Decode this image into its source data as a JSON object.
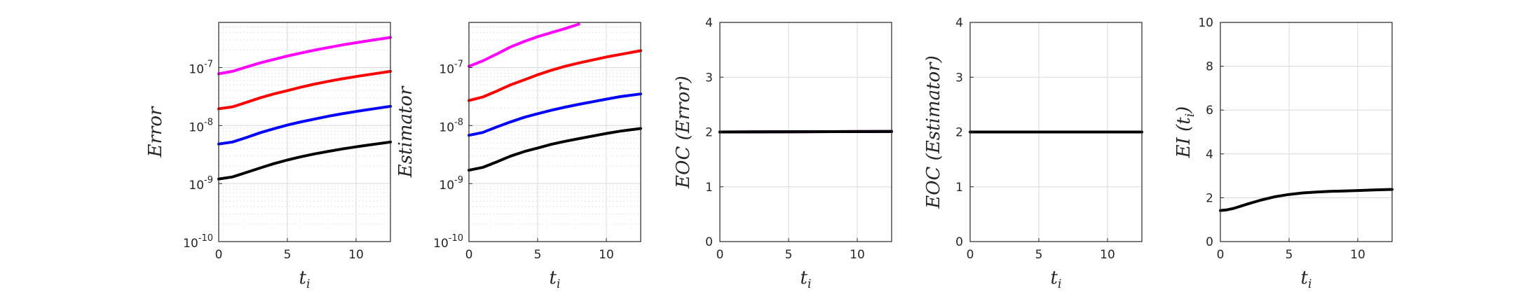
{
  "chart_data": [
    {
      "type": "line",
      "yscale": "log",
      "xlabel": "t_i",
      "ylabel": "Error",
      "xlim": [
        0,
        12.5
      ],
      "ylim": [
        1e-10,
        6e-07
      ],
      "xticks": [
        0,
        5,
        10
      ],
      "xtick_labels": [
        "0",
        "5",
        "10"
      ],
      "yticks": [
        1e-10,
        1e-09,
        1e-08,
        1e-07
      ],
      "ytick_labels": [
        [
          "10",
          "-10"
        ],
        [
          "10",
          "-9"
        ],
        [
          "10",
          "-8"
        ],
        [
          "10",
          "-7"
        ]
      ],
      "grid": true,
      "minor_grid": true,
      "x": [
        0,
        1,
        2,
        3,
        4,
        5,
        6,
        7,
        8,
        9,
        10,
        11,
        12.5
      ],
      "series": [
        {
          "color": "#ff00ff",
          "values": [
            7.8e-08,
            8.6e-08,
            1.02e-07,
            1.2e-07,
            1.38e-07,
            1.58e-07,
            1.78e-07,
            2e-07,
            2.22e-07,
            2.45e-07,
            2.68e-07,
            2.92e-07,
            3.3e-07
          ]
        },
        {
          "color": "#ff0000",
          "values": [
            1.95e-08,
            2.1e-08,
            2.5e-08,
            3e-08,
            3.5e-08,
            4e-08,
            4.6e-08,
            5.2e-08,
            5.8e-08,
            6.4e-08,
            7e-08,
            7.6e-08,
            8.6e-08
          ]
        },
        {
          "color": "#0000ff",
          "values": [
            4.8e-09,
            5.2e-09,
            6.2e-09,
            7.5e-09,
            8.8e-09,
            1.02e-08,
            1.16e-08,
            1.3e-08,
            1.45e-08,
            1.6e-08,
            1.75e-08,
            1.9e-08,
            2.15e-08
          ]
        },
        {
          "color": "#000000",
          "values": [
            1.2e-09,
            1.3e-09,
            1.55e-09,
            1.85e-09,
            2.2e-09,
            2.55e-09,
            2.9e-09,
            3.25e-09,
            3.6e-09,
            3.95e-09,
            4.3e-09,
            4.65e-09,
            5.2e-09
          ]
        }
      ]
    },
    {
      "type": "line",
      "yscale": "log",
      "xlabel": "t_i",
      "ylabel": "Estimator",
      "xlim": [
        0,
        12.5
      ],
      "ylim": [
        1e-10,
        6e-07
      ],
      "xticks": [
        0,
        5,
        10
      ],
      "xtick_labels": [
        "0",
        "5",
        "10"
      ],
      "yticks": [
        1e-10,
        1e-09,
        1e-08,
        1e-07
      ],
      "ytick_labels": [
        [
          "10",
          "-10"
        ],
        [
          "10",
          "-9"
        ],
        [
          "10",
          "-8"
        ],
        [
          "10",
          "-7"
        ]
      ],
      "grid": true,
      "minor_grid": true,
      "x": [
        0,
        1,
        2,
        3,
        4,
        5,
        6,
        7,
        8,
        9,
        10,
        11,
        12.5
      ],
      "series": [
        {
          "color": "#ff00ff",
          "values": [
            1.05e-07,
            1.3e-07,
            1.7e-07,
            2.25e-07,
            2.8e-07,
            3.4e-07,
            4e-07,
            4.7e-07,
            5.6e-07,
            null,
            null,
            null,
            null
          ]
        },
        {
          "color": "#ff0000",
          "values": [
            2.7e-08,
            3.1e-08,
            3.9e-08,
            5e-08,
            6.1e-08,
            7.5e-08,
            9e-08,
            1.05e-07,
            1.2e-07,
            1.35e-07,
            1.52e-07,
            1.68e-07,
            1.95e-07
          ]
        },
        {
          "color": "#0000ff",
          "values": [
            6.8e-09,
            7.6e-09,
            9.4e-09,
            1.15e-08,
            1.38e-08,
            1.6e-08,
            1.84e-08,
            2.08e-08,
            2.32e-08,
            2.57e-08,
            2.85e-08,
            3.15e-08,
            3.5e-08
          ]
        },
        {
          "color": "#000000",
          "values": [
            1.7e-09,
            1.9e-09,
            2.35e-09,
            2.95e-09,
            3.55e-09,
            4.1e-09,
            4.75e-09,
            5.35e-09,
            5.95e-09,
            6.6e-09,
            7.3e-09,
            8e-09,
            8.9e-09
          ]
        }
      ]
    },
    {
      "type": "line",
      "xlabel": "t_i",
      "ylabel": "EOC (Error)",
      "xlim": [
        0,
        12.5
      ],
      "ylim": [
        0,
        4
      ],
      "xticks": [
        0,
        5,
        10
      ],
      "xtick_labels": [
        "0",
        "5",
        "10"
      ],
      "yticks": [
        0,
        1,
        2,
        3,
        4
      ],
      "ytick_labels": [
        "0",
        "1",
        "2",
        "3",
        "4"
      ],
      "grid": true,
      "x": [
        0,
        12.5
      ],
      "series": [
        {
          "color": "#ff00ff",
          "values": [
            2.0,
            2.01
          ]
        },
        {
          "color": "#ff0000",
          "values": [
            2.0,
            2.01
          ]
        },
        {
          "color": "#0000ff",
          "values": [
            2.0,
            2.01
          ]
        },
        {
          "color": "#000000",
          "values": [
            2.0,
            2.01
          ]
        }
      ]
    },
    {
      "type": "line",
      "xlabel": "t_i",
      "ylabel": "EOC (Estimator)",
      "xlim": [
        0,
        12.5
      ],
      "ylim": [
        0,
        4
      ],
      "xticks": [
        0,
        5,
        10
      ],
      "xtick_labels": [
        "0",
        "5",
        "10"
      ],
      "yticks": [
        0,
        1,
        2,
        3,
        4
      ],
      "ytick_labels": [
        "0",
        "1",
        "2",
        "3",
        "4"
      ],
      "grid": true,
      "x": [
        0,
        12.5
      ],
      "series": [
        {
          "color": "#000000",
          "values": [
            2.0,
            2.0
          ]
        }
      ]
    },
    {
      "type": "line",
      "xlabel": "t_i",
      "ylabel": "EI (t_i)",
      "xlim": [
        0,
        12.5
      ],
      "ylim": [
        0,
        10
      ],
      "xticks": [
        0,
        5,
        10
      ],
      "xtick_labels": [
        "0",
        "5",
        "10"
      ],
      "yticks": [
        0,
        2,
        4,
        6,
        8,
        10
      ],
      "ytick_labels": [
        "0",
        "2",
        "4",
        "6",
        "8",
        "10"
      ],
      "grid": true,
      "x": [
        0,
        0.5,
        1,
        1.5,
        2,
        3,
        4,
        5,
        6,
        7,
        8,
        9,
        10,
        11,
        12.5
      ],
      "series": [
        {
          "color": "#000000",
          "values": [
            1.42,
            1.45,
            1.52,
            1.62,
            1.72,
            1.9,
            2.05,
            2.15,
            2.22,
            2.26,
            2.29,
            2.31,
            2.33,
            2.35,
            2.38
          ]
        }
      ]
    }
  ]
}
